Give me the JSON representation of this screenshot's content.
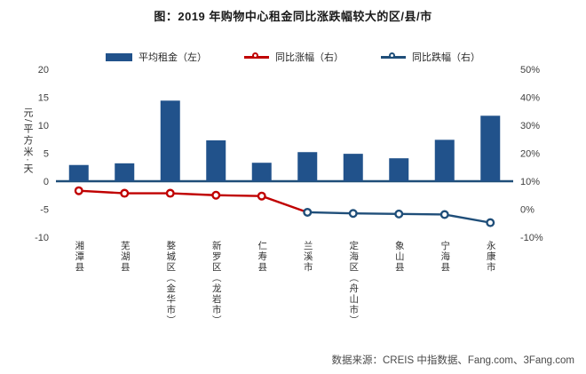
{
  "title": "图：2019 年购物中心租金同比涨跌幅较大的区/县/市",
  "source": "数据来源：CREIS 中指数据、Fang.com、3Fang.com",
  "chart_data": {
    "type": "combo",
    "title": "图：2019 年购物中心租金同比涨跌幅较大的区/县/市",
    "categories": [
      "湘潭县",
      "芜湖县",
      "婺城区（金华市）",
      "新罗区（龙岩市）",
      "仁寿县",
      "兰溪市",
      "定海区（舟山市）",
      "象山县",
      "宁海县",
      "永康市"
    ],
    "series": [
      {
        "name": "平均租金（左）",
        "type": "bar",
        "axis": "left",
        "color": "#21528B",
        "values": [
          2.9,
          3.2,
          14.4,
          7.3,
          3.3,
          5.2,
          4.9,
          4.1,
          7.4,
          11.7
        ]
      },
      {
        "name": "同比涨幅（右）",
        "type": "line",
        "axis": "right",
        "color": "#C00000",
        "connect_to_next": true,
        "values": [
          6.6,
          5.7,
          5.7,
          5.0,
          4.7,
          null,
          null,
          null,
          null,
          null
        ]
      },
      {
        "name": "同比跌幅（右）",
        "type": "line",
        "axis": "right",
        "color": "#1F4E79",
        "values": [
          null,
          null,
          null,
          null,
          null,
          -1.1,
          -1.5,
          -1.7,
          -1.9,
          -4.8
        ]
      }
    ],
    "left_axis": {
      "label": "元/平方米·天",
      "ticks": [
        "20",
        "15",
        "10",
        "5",
        "0",
        "-5",
        "-10"
      ],
      "min": -10,
      "max": 20
    },
    "right_axis": {
      "ticks": [
        "50%",
        "40%",
        "30%",
        "20%",
        "10%",
        "0%",
        "-10%"
      ],
      "min": -10,
      "max": 50
    },
    "axis_color": "#1F4E79",
    "grid": false,
    "legend_position": "top"
  }
}
